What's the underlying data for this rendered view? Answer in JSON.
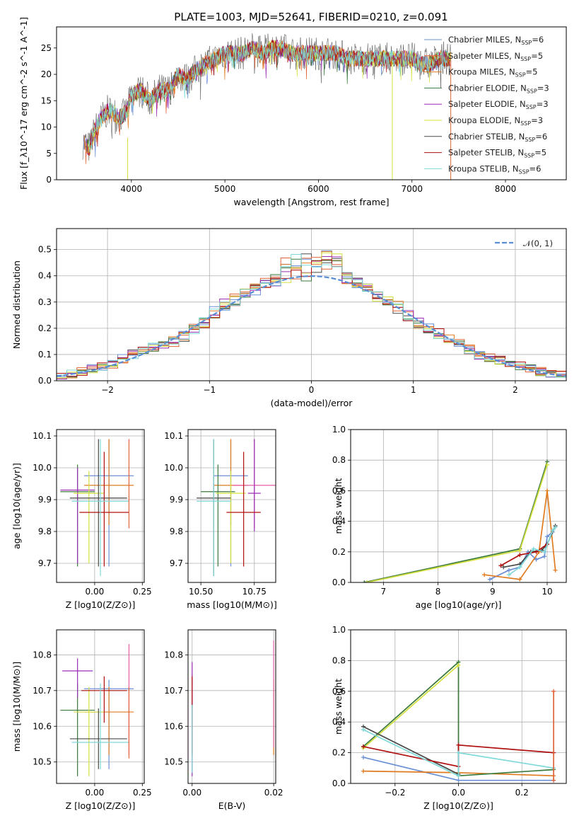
{
  "title": "PLATE=1003, MJD=52641, FIBERID=0210, z=0.091",
  "colors": {
    "chabrier_miles": "#6b8fd6",
    "salpeter_miles": "#e0653a",
    "kroupa_miles": "#e07b20",
    "chabrier_elodie": "#3d7a3d",
    "salpeter_elodie": "#9b2fb8",
    "kroupa_elodie": "#d4e040",
    "chabrier_stelib": "#4a4a4a",
    "salpeter_stelib": "#b01010",
    "kroupa_stelib": "#7fd8d8",
    "grid": "#b0b0b0",
    "normal": "#5a8fd6"
  },
  "chart_data": [
    {
      "type": "line",
      "title": "PLATE=1003, MJD=52641, FIBERID=0210, z=0.091",
      "xlabel": "wavelength [Angstrom, rest frame]",
      "ylabel": "Flux [f_λ10^-17 erg cm^-2 s^-1 A^-1]",
      "xlim": [
        3200,
        8650
      ],
      "ylim": [
        0,
        29
      ],
      "xticks": [
        "4000",
        "5000",
        "6000",
        "7000",
        "8000"
      ],
      "xtick_values": [
        4000,
        5000,
        6000,
        7000,
        8000
      ],
      "yticks": [
        "0",
        "5",
        "10",
        "15",
        "20",
        "25"
      ],
      "ytick_values": [
        0,
        5,
        10,
        15,
        20,
        25
      ],
      "grid": false,
      "legend_position": "upper right",
      "legend": [
        {
          "name": "Chabrier MILES, N",
          "sub": "SSP",
          "tail": "=6",
          "color": "#6b8fd6"
        },
        {
          "name": "Salpeter MILES, N",
          "sub": "SSP",
          "tail": "=5",
          "color": "#e0653a"
        },
        {
          "name": "Kroupa MILES, N",
          "sub": "SSP",
          "tail": "=5",
          "color": "#e07b20"
        },
        {
          "name": "Chabrier ELODIE, N",
          "sub": "SSP",
          "tail": "=3",
          "color": "#3d7a3d"
        },
        {
          "name": "Salpeter ELODIE, N",
          "sub": "SSP",
          "tail": "=3",
          "color": "#9b2fb8"
        },
        {
          "name": "Kroupa ELODIE, N",
          "sub": "SSP",
          "tail": "=3",
          "color": "#d4e040"
        },
        {
          "name": "Chabrier STELIB, N",
          "sub": "SSP",
          "tail": "=6",
          "color": "#4a4a4a"
        },
        {
          "name": "Salpeter STELIB, N",
          "sub": "SSP",
          "tail": "=5",
          "color": "#b01010"
        },
        {
          "name": "Kroupa STELIB, N",
          "sub": "SSP",
          "tail": "=6",
          "color": "#7fd8d8"
        }
      ],
      "x": [
        3500,
        3550,
        3600,
        3650,
        3700,
        3750,
        3800,
        3850,
        3900,
        3950,
        4000,
        4100,
        4200,
        4300,
        4400,
        4500,
        4600,
        4700,
        4800,
        4900,
        5000,
        5100,
        5200,
        5300,
        5400,
        5500,
        5600,
        5700,
        5800,
        5900,
        6000,
        6100,
        6200,
        6300,
        6400,
        6500,
        6600,
        6700,
        6800,
        6900,
        7000,
        7100,
        7200,
        7300,
        7400
      ],
      "y": [
        7,
        6,
        9,
        11,
        12,
        13,
        13,
        12,
        12,
        13,
        16,
        17,
        15,
        17,
        17,
        20,
        19,
        21,
        22,
        23,
        24,
        24,
        24,
        25,
        24,
        25,
        25,
        24,
        24,
        24,
        24,
        24,
        24,
        23,
        23,
        23,
        23,
        23,
        23,
        23,
        23,
        22,
        22,
        23,
        23
      ]
    },
    {
      "type": "bar",
      "xlabel": "(data-model)/error",
      "ylabel": "Normed distribution",
      "xlim": [
        -2.5,
        2.5
      ],
      "ylim": [
        0,
        0.58
      ],
      "xticks": [
        "−2",
        "−1",
        "0",
        "1",
        "2"
      ],
      "xtick_values": [
        -2,
        -1,
        0,
        1,
        2
      ],
      "yticks": [
        "0.0",
        "0.1",
        "0.2",
        "0.3",
        "0.4",
        "0.5"
      ],
      "ytick_values": [
        0,
        0.1,
        0.2,
        0.3,
        0.4,
        0.5
      ],
      "grid": true,
      "legend_position": "upper right",
      "legend": [
        {
          "name": "𝒩(0, 1)",
          "color": "#5a8fd6"
        }
      ],
      "x": [
        -2.45,
        -2.35,
        -2.25,
        -2.15,
        -2.05,
        -1.95,
        -1.85,
        -1.75,
        -1.65,
        -1.55,
        -1.45,
        -1.35,
        -1.25,
        -1.15,
        -1.05,
        -0.95,
        -0.85,
        -0.75,
        -0.65,
        -0.55,
        -0.45,
        -0.35,
        -0.25,
        -0.15,
        -0.05,
        0.05,
        0.15,
        0.25,
        0.35,
        0.45,
        0.55,
        0.65,
        0.75,
        0.85,
        0.95,
        1.05,
        1.15,
        1.25,
        1.35,
        1.45,
        1.55,
        1.65,
        1.75,
        1.85,
        1.95,
        2.05,
        2.15,
        2.25,
        2.35,
        2.45
      ],
      "values": [
        0.02,
        0.025,
        0.035,
        0.045,
        0.055,
        0.065,
        0.085,
        0.1,
        0.12,
        0.13,
        0.14,
        0.15,
        0.17,
        0.2,
        0.22,
        0.26,
        0.29,
        0.31,
        0.33,
        0.35,
        0.37,
        0.38,
        0.39,
        0.4,
        0.4,
        0.42,
        0.42,
        0.41,
        0.39,
        0.37,
        0.35,
        0.32,
        0.3,
        0.28,
        0.25,
        0.22,
        0.2,
        0.18,
        0.16,
        0.14,
        0.12,
        0.1,
        0.09,
        0.08,
        0.065,
        0.055,
        0.045,
        0.035,
        0.03,
        0.025
      ]
    },
    {
      "type": "scatter",
      "xlabel": "Z [log10(Z/Z⊙)]",
      "ylabel": "age  [log10(age/yr)]",
      "xlim": [
        -0.2,
        0.26
      ],
      "ylim": [
        9.64,
        10.12
      ],
      "xticks": [
        "0.00",
        "0.25"
      ],
      "xtick_values": [
        0,
        0.25
      ],
      "yticks": [
        "9.7",
        "9.8",
        "9.9",
        "10.0",
        "10.1"
      ],
      "ytick_values": [
        9.7,
        9.8,
        9.9,
        10.0,
        10.1
      ],
      "grid": true,
      "points": [
        {
          "x": 0.075,
          "y": 9.975,
          "xerr": 0.13,
          "yerr": [
            9.69,
            10.09
          ],
          "color": "#6b8fd6"
        },
        {
          "x": 0.075,
          "y": 9.945,
          "xerr": 0.13,
          "yerr": [
            9.82,
            10.09
          ],
          "color": "#e07b20"
        },
        {
          "x": -0.09,
          "y": 9.925,
          "xerr": 0.09,
          "yerr": [
            9.69,
            10.01
          ],
          "color": "#3d7a3d"
        },
        {
          "x": -0.09,
          "y": 9.93,
          "xerr": 0.09,
          "yerr": [
            9.7,
            10.0
          ],
          "color": "#9b2fb8"
        },
        {
          "x": -0.03,
          "y": 9.92,
          "xerr": 0.08,
          "yerr": [
            9.7,
            9.99
          ],
          "color": "#d4e040"
        },
        {
          "x": 0.02,
          "y": 9.905,
          "xerr": 0.15,
          "yerr": [
            9.69,
            10.09
          ],
          "color": "#4a4a4a"
        },
        {
          "x": 0.05,
          "y": 9.86,
          "xerr": 0.13,
          "yerr": [
            9.69,
            10.05
          ],
          "color": "#b01010"
        },
        {
          "x": 0.03,
          "y": 9.895,
          "xerr": 0.15,
          "yerr": [
            9.66,
            10.09
          ],
          "color": "#7fd8d8"
        },
        {
          "x": 0.18,
          "y": 9.93,
          "xerr": 0.0,
          "yerr": [
            9.81,
            10.09
          ],
          "color": "#e0653a"
        }
      ]
    },
    {
      "type": "scatter",
      "xlabel": "mass [log10(M/M⊙)]",
      "ylabel": "",
      "xlim": [
        10.44,
        10.85
      ],
      "ylim": [
        9.64,
        10.12
      ],
      "xticks": [
        "10.50",
        "10.75"
      ],
      "xtick_values": [
        10.5,
        10.75
      ],
      "yticks": [
        "9.7",
        "9.8",
        "9.9",
        "10.0",
        "10.1"
      ],
      "ytick_values": [
        9.7,
        9.8,
        9.9,
        10.0,
        10.1
      ],
      "grid": true,
      "points": [
        {
          "x": 10.64,
          "y": 9.975,
          "xerr": 0.08,
          "yerr": [
            9.69,
            10.09
          ],
          "color": "#6b8fd6"
        },
        {
          "x": 10.64,
          "y": 9.945,
          "xerr": 0.08,
          "yerr": [
            9.82,
            10.09
          ],
          "color": "#e07b20"
        },
        {
          "x": 10.75,
          "y": 9.945,
          "xerr": 0.1,
          "yerr": [
            9.81,
            10.09
          ],
          "color": "#e85fa8"
        },
        {
          "x": 10.58,
          "y": 9.925,
          "xerr": 0.08,
          "yerr": [
            9.69,
            10.01
          ],
          "color": "#3d7a3d"
        },
        {
          "x": 10.75,
          "y": 9.92,
          "xerr": 0.03,
          "yerr": [
            9.8,
            10.09
          ],
          "color": "#9b2fb8"
        },
        {
          "x": 10.64,
          "y": 9.92,
          "xerr": 0.07,
          "yerr": [
            9.7,
            9.99
          ],
          "color": "#d4e040"
        },
        {
          "x": 10.56,
          "y": 9.905,
          "xerr": 0.08,
          "yerr": [
            9.66,
            10.09
          ],
          "color": "#4a4a4a"
        },
        {
          "x": 10.7,
          "y": 9.86,
          "xerr": 0.08,
          "yerr": [
            9.69,
            10.05
          ],
          "color": "#b01010"
        },
        {
          "x": 10.56,
          "y": 9.895,
          "xerr": 0.08,
          "yerr": [
            9.66,
            10.09
          ],
          "color": "#7fd8d8"
        }
      ]
    },
    {
      "type": "line",
      "xlabel": "age  [log10(age/yr)]",
      "ylabel": "mass weight",
      "xlim": [
        6.4,
        10.35
      ],
      "ylim": [
        0,
        1.0
      ],
      "xticks": [
        "7",
        "8",
        "9",
        "10"
      ],
      "xtick_values": [
        7,
        8,
        9,
        10
      ],
      "yticks": [
        "0.0",
        "0.2",
        "0.4",
        "0.6",
        "0.8",
        "1.0"
      ],
      "ytick_values": [
        0,
        0.2,
        0.4,
        0.6,
        0.8,
        1.0
      ],
      "grid": true,
      "series": [
        {
          "color": "#6b8fd6",
          "x": [
            8.95,
            9.3,
            9.5,
            9.65,
            9.8,
            9.95,
            10.0,
            10.1
          ],
          "y": [
            0.02,
            0.08,
            0.1,
            0.2,
            0.15,
            0.17,
            0.3,
            0.33
          ]
        },
        {
          "color": "#e07b20",
          "x": [
            8.85,
            9.5,
            9.85,
            10.0,
            10.15
          ],
          "y": [
            0.05,
            0.02,
            0.2,
            0.6,
            0.08
          ]
        },
        {
          "color": "#3d7a3d",
          "x": [
            6.65,
            9.5,
            10.0
          ],
          "y": [
            0.0,
            0.22,
            0.79
          ]
        },
        {
          "color": "#d4e040",
          "x": [
            6.7,
            9.5,
            10.0
          ],
          "y": [
            0.0,
            0.21,
            0.77
          ]
        },
        {
          "color": "#4a4a4a",
          "x": [
            9.2,
            9.5,
            9.7,
            9.9,
            10.0,
            10.15
          ],
          "y": [
            0.1,
            0.12,
            0.2,
            0.21,
            0.25,
            0.37
          ]
        },
        {
          "color": "#b01010",
          "x": [
            9.15,
            9.5,
            9.8,
            10.0
          ],
          "y": [
            0.11,
            0.18,
            0.2,
            0.25
          ]
        },
        {
          "color": "#7fd8d8",
          "x": [
            9.3,
            9.5,
            9.75,
            9.95,
            10.1,
            10.15
          ],
          "y": [
            0.05,
            0.1,
            0.22,
            0.2,
            0.34,
            0.36
          ]
        }
      ]
    },
    {
      "type": "scatter",
      "xlabel": "Z [log10(Z/Z⊙)]",
      "ylabel": "mass [log10(M/M⊙)]",
      "xlim": [
        -0.2,
        0.26
      ],
      "ylim": [
        10.44,
        10.87
      ],
      "xticks": [
        "0.00",
        "0.25"
      ],
      "xtick_values": [
        0,
        0.25
      ],
      "yticks": [
        "10.5",
        "10.6",
        "10.7",
        "10.8"
      ],
      "ytick_values": [
        10.5,
        10.6,
        10.7,
        10.8
      ],
      "grid": true,
      "points": [
        {
          "x": 0.075,
          "y": 10.705,
          "xerr": 0.13,
          "yerr": [
            10.48,
            10.73
          ],
          "color": "#6b8fd6"
        },
        {
          "x": 0.075,
          "y": 10.64,
          "xerr": 0.13,
          "yerr": [
            10.52,
            10.71
          ],
          "color": "#e07b20"
        },
        {
          "x": 0.18,
          "y": 10.755,
          "xerr": 0.0,
          "yerr": [
            10.52,
            10.83
          ],
          "color": "#e85fa8"
        },
        {
          "x": -0.09,
          "y": 10.645,
          "xerr": 0.09,
          "yerr": [
            10.46,
            10.72
          ],
          "color": "#3d7a3d"
        },
        {
          "x": -0.09,
          "y": 10.755,
          "xerr": 0.08,
          "yerr": [
            10.68,
            10.79
          ],
          "color": "#9b2fb8"
        },
        {
          "x": -0.03,
          "y": 10.64,
          "xerr": 0.08,
          "yerr": [
            10.46,
            10.71
          ],
          "color": "#d4e040"
        },
        {
          "x": 0.02,
          "y": 10.565,
          "xerr": 0.15,
          "yerr": [
            10.48,
            10.65
          ],
          "color": "#4a4a4a"
        },
        {
          "x": 0.05,
          "y": 10.7,
          "xerr": 0.12,
          "yerr": [
            10.61,
            10.74
          ],
          "color": "#b01010"
        },
        {
          "x": 0.03,
          "y": 10.555,
          "xerr": 0.15,
          "yerr": [
            10.48,
            10.72
          ],
          "color": "#7fd8d8"
        },
        {
          "x": 0.18,
          "y": 10.6,
          "xerr": 0.0,
          "yerr": [
            10.51,
            10.71
          ],
          "color": "#e0653a"
        }
      ]
    },
    {
      "type": "scatter",
      "xlabel": "E(B-V)",
      "ylabel": "",
      "xlim": [
        -0.001,
        0.0205
      ],
      "ylim": [
        10.44,
        10.87
      ],
      "xticks": [
        "0.00",
        "0.02"
      ],
      "xtick_values": [
        0,
        0.02
      ],
      "yticks": [
        "10.5",
        "10.6",
        "10.7",
        "10.8"
      ],
      "ytick_values": [
        10.5,
        10.6,
        10.7,
        10.8
      ],
      "grid": true,
      "points": [
        {
          "x": 0.0,
          "y": 10.62,
          "xerr": 0.0,
          "yerr": [
            10.46,
            10.78
          ],
          "color": "#9b2fb8"
        },
        {
          "x": 0.0,
          "y": 10.64,
          "xerr": 0.0,
          "yerr": [
            10.52,
            10.74
          ],
          "color": "#b01010"
        },
        {
          "x": 0.0,
          "y": 10.55,
          "xerr": 0.0,
          "yerr": [
            10.47,
            10.66
          ],
          "color": "#7fd8d8"
        },
        {
          "x": 0.02,
          "y": 10.62,
          "xerr": 0.0,
          "yerr": [
            10.52,
            10.73
          ],
          "color": "#e07b20"
        },
        {
          "x": 0.02,
          "y": 10.7,
          "xerr": 0.0,
          "yerr": [
            10.54,
            10.84
          ],
          "color": "#e85fa8"
        }
      ]
    },
    {
      "type": "line",
      "xlabel": "Z [log10(Z/Z⊙)]",
      "ylabel": "mass weight",
      "xlim": [
        -0.34,
        0.34
      ],
      "ylim": [
        0,
        1.0
      ],
      "xticks": [
        "−0.2",
        "0.0",
        "0.2"
      ],
      "xtick_values": [
        -0.2,
        0.0,
        0.2
      ],
      "yticks": [
        "0.0",
        "0.2",
        "0.4",
        "0.6",
        "0.8",
        "1.0"
      ],
      "ytick_values": [
        0,
        0.2,
        0.4,
        0.6,
        0.8,
        1.0
      ],
      "grid": true,
      "series": [
        {
          "color": "#6b8fd6",
          "x": [
            -0.3,
            0.0,
            0.3
          ],
          "y": [
            0.17,
            0.02,
            0.02
          ]
        },
        {
          "color": "#e07b20",
          "x": [
            -0.3,
            0.0,
            0.3
          ],
          "y": [
            0.08,
            0.07,
            0.05
          ]
        },
        {
          "color": "#3d7a3d",
          "x": [
            -0.3,
            0.0,
            0.0,
            0.3
          ],
          "y": [
            0.24,
            0.79,
            0.05,
            0.09
          ]
        },
        {
          "color": "#d4e040",
          "x": [
            -0.3,
            0.0
          ],
          "y": [
            0.23,
            0.77
          ]
        },
        {
          "color": "#4a4a4a",
          "x": [
            -0.3,
            0.0
          ],
          "y": [
            0.37,
            0.06
          ]
        },
        {
          "color": "#b01010",
          "x": [
            -0.3,
            0.0,
            0.0,
            0.3
          ],
          "y": [
            0.24,
            0.11,
            0.25,
            0.2
          ]
        },
        {
          "color": "#7fd8d8",
          "x": [
            -0.3,
            0.0,
            0.0,
            0.3
          ],
          "y": [
            0.35,
            0.05,
            0.2,
            0.1
          ]
        },
        {
          "color": "#e0653a",
          "x": [
            0.3,
            0.3
          ],
          "y": [
            0.02,
            0.6
          ]
        }
      ]
    }
  ]
}
